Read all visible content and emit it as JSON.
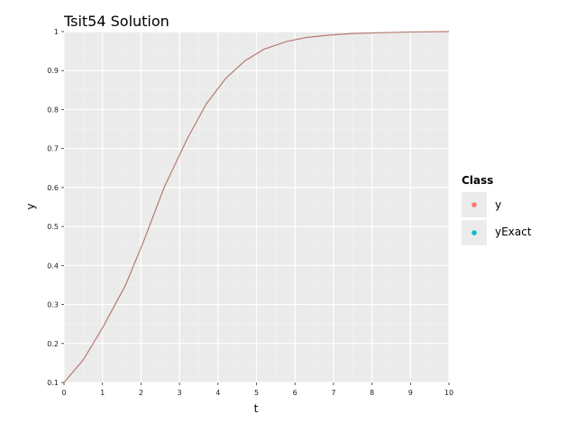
{
  "chart_data": {
    "type": "line",
    "title": "Tsit54 Solution",
    "xlabel": "t",
    "ylabel": "y",
    "xlim": [
      0,
      10
    ],
    "ylim": [
      0.1,
      1
    ],
    "x_ticks": [
      "0",
      "1",
      "2",
      "3",
      "4",
      "5",
      "6",
      "7",
      "8",
      "9",
      "10"
    ],
    "y_ticks": [
      "0.1",
      "0.2",
      "0.3",
      "0.4",
      "0.5",
      "0.6",
      "0.7",
      "0.8",
      "0.9",
      "1"
    ],
    "grid": true,
    "legend": {
      "title": "Class",
      "placement": "right",
      "entries": [
        {
          "label": "y",
          "color": "#f8766d"
        },
        {
          "label": "yExact",
          "color": "#00bfc4"
        }
      ]
    },
    "series": [
      {
        "name": "y",
        "color": "#b87a72",
        "x": [
          0,
          0.5,
          1.0,
          1.6,
          2.1,
          2.6,
          3.2,
          3.7,
          4.2,
          4.7,
          5.2,
          5.8,
          6.3,
          6.9,
          7.5,
          8.2,
          9.0,
          10.0
        ],
        "y": [
          0.1,
          0.158,
          0.24,
          0.35,
          0.47,
          0.6,
          0.725,
          0.815,
          0.88,
          0.925,
          0.955,
          0.975,
          0.985,
          0.991,
          0.995,
          0.997,
          0.999,
          1.0
        ]
      }
    ]
  }
}
